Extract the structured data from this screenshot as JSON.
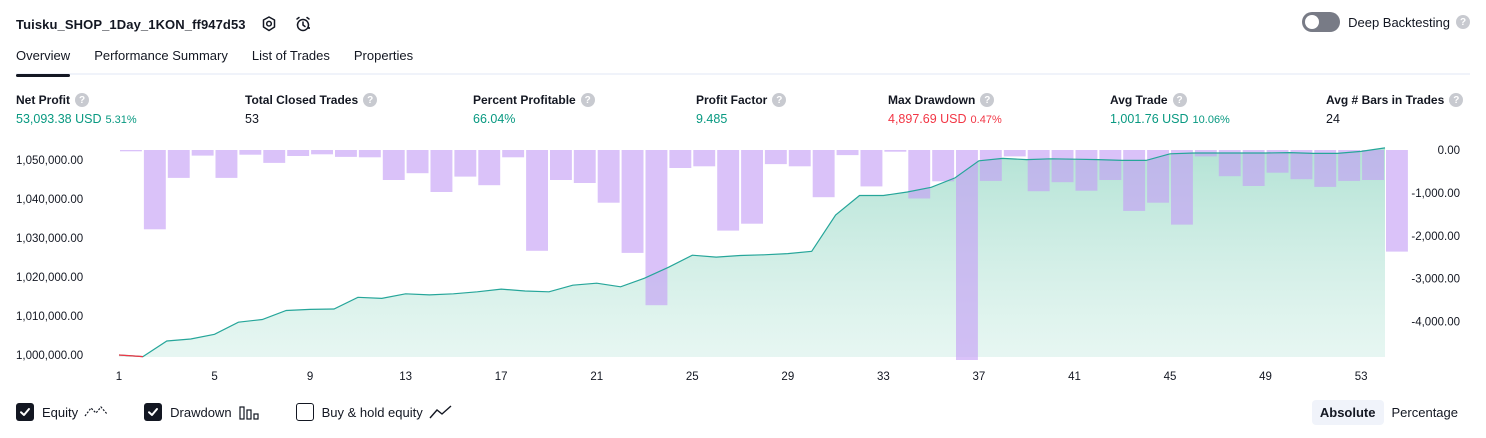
{
  "header": {
    "strategy_name": "Tuisku_SHOP_1Day_1KON_ff947d53",
    "deep_backtesting_label": "Deep Backtesting",
    "help_glyph": "?"
  },
  "tabs": [
    {
      "label": "Overview",
      "active": true
    },
    {
      "label": "Performance Summary",
      "active": false
    },
    {
      "label": "List of Trades",
      "active": false
    },
    {
      "label": "Properties",
      "active": false
    }
  ],
  "metrics": [
    {
      "label": "Net Profit",
      "value": "53,093.38 USD",
      "pct": "5.31%",
      "color": "#089981"
    },
    {
      "label": "Total Closed Trades",
      "value": "53",
      "pct": "",
      "color": "#131722"
    },
    {
      "label": "Percent Profitable",
      "value": "66.04%",
      "pct": "",
      "color": "#089981"
    },
    {
      "label": "Profit Factor",
      "value": "9.485",
      "pct": "",
      "color": "#089981"
    },
    {
      "label": "Max Drawdown",
      "value": "4,897.69 USD",
      "pct": "0.47%",
      "color": "#f23645"
    },
    {
      "label": "Avg Trade",
      "value": "1,001.76 USD",
      "pct": "10.06%",
      "color": "#089981"
    },
    {
      "label": "Avg # Bars in Trades",
      "value": "24",
      "pct": "",
      "color": "#131722"
    }
  ],
  "chart_data": {
    "type": "line",
    "x_ticks": [
      "1",
      "5",
      "9",
      "13",
      "17",
      "21",
      "25",
      "29",
      "33",
      "37",
      "41",
      "45",
      "49",
      "53"
    ],
    "y_left_ticks": [
      "1,050,000.00",
      "1,040,000.00",
      "1,030,000.00",
      "1,020,000.00",
      "1,010,000.00",
      "1,000,000.00"
    ],
    "y_left_range": [
      1000000,
      1050000
    ],
    "y_right_ticks": [
      "0.00",
      "-1,000.00",
      "-2,000.00",
      "-3,000.00",
      "-4,000.00"
    ],
    "y_right_range": [
      -4897.69,
      0
    ],
    "x_range": [
      1,
      54
    ],
    "equity": [
      1000000,
      999600,
      1003600,
      1004100,
      1005300,
      1008400,
      1009100,
      1011400,
      1011700,
      1011800,
      1014800,
      1014500,
      1015700,
      1015400,
      1015700,
      1016200,
      1016900,
      1016400,
      1016200,
      1017900,
      1018400,
      1017500,
      1019700,
      1022500,
      1025600,
      1025100,
      1025500,
      1025700,
      1026000,
      1026600,
      1035900,
      1040900,
      1040900,
      1041800,
      1043000,
      1045400,
      1049800,
      1050400,
      1050100,
      1050300,
      1050200,
      1050100,
      1049900,
      1049900,
      1051600,
      1051800,
      1051800,
      1051800,
      1051800,
      1051900,
      1051700,
      1051700,
      1052200,
      1053093
    ],
    "drawdown": [
      -30,
      -1850,
      -650,
      -130,
      -650,
      -110,
      -300,
      -140,
      -100,
      -160,
      -170,
      -700,
      -540,
      -980,
      -620,
      -820,
      -170,
      -2350,
      -700,
      -770,
      -1230,
      -2400,
      -3620,
      -420,
      -380,
      -1880,
      -1720,
      -330,
      -380,
      -1100,
      -120,
      -850,
      -40,
      -1130,
      -730,
      -4897.69,
      -720,
      -150,
      -960,
      -750,
      -950,
      -700,
      -1420,
      -1230,
      -1740,
      -150,
      -610,
      -840,
      -530,
      -680,
      -860,
      -720,
      -700,
      -2370
    ],
    "series": [
      {
        "name": "Equity",
        "color": "#26a69a"
      },
      {
        "name": "Drawdown",
        "color": "#b39ddb"
      }
    ]
  },
  "legend": [
    {
      "label": "Equity",
      "checked": true,
      "icon": "equity-line-icon"
    },
    {
      "label": "Drawdown",
      "checked": true,
      "icon": "drawdown-bars-icon"
    },
    {
      "label": "Buy & hold equity",
      "checked": false,
      "icon": "buy-hold-line-icon"
    }
  ],
  "mode": {
    "absolute_label": "Absolute",
    "percentage_label": "Percentage",
    "selected": "Absolute"
  }
}
